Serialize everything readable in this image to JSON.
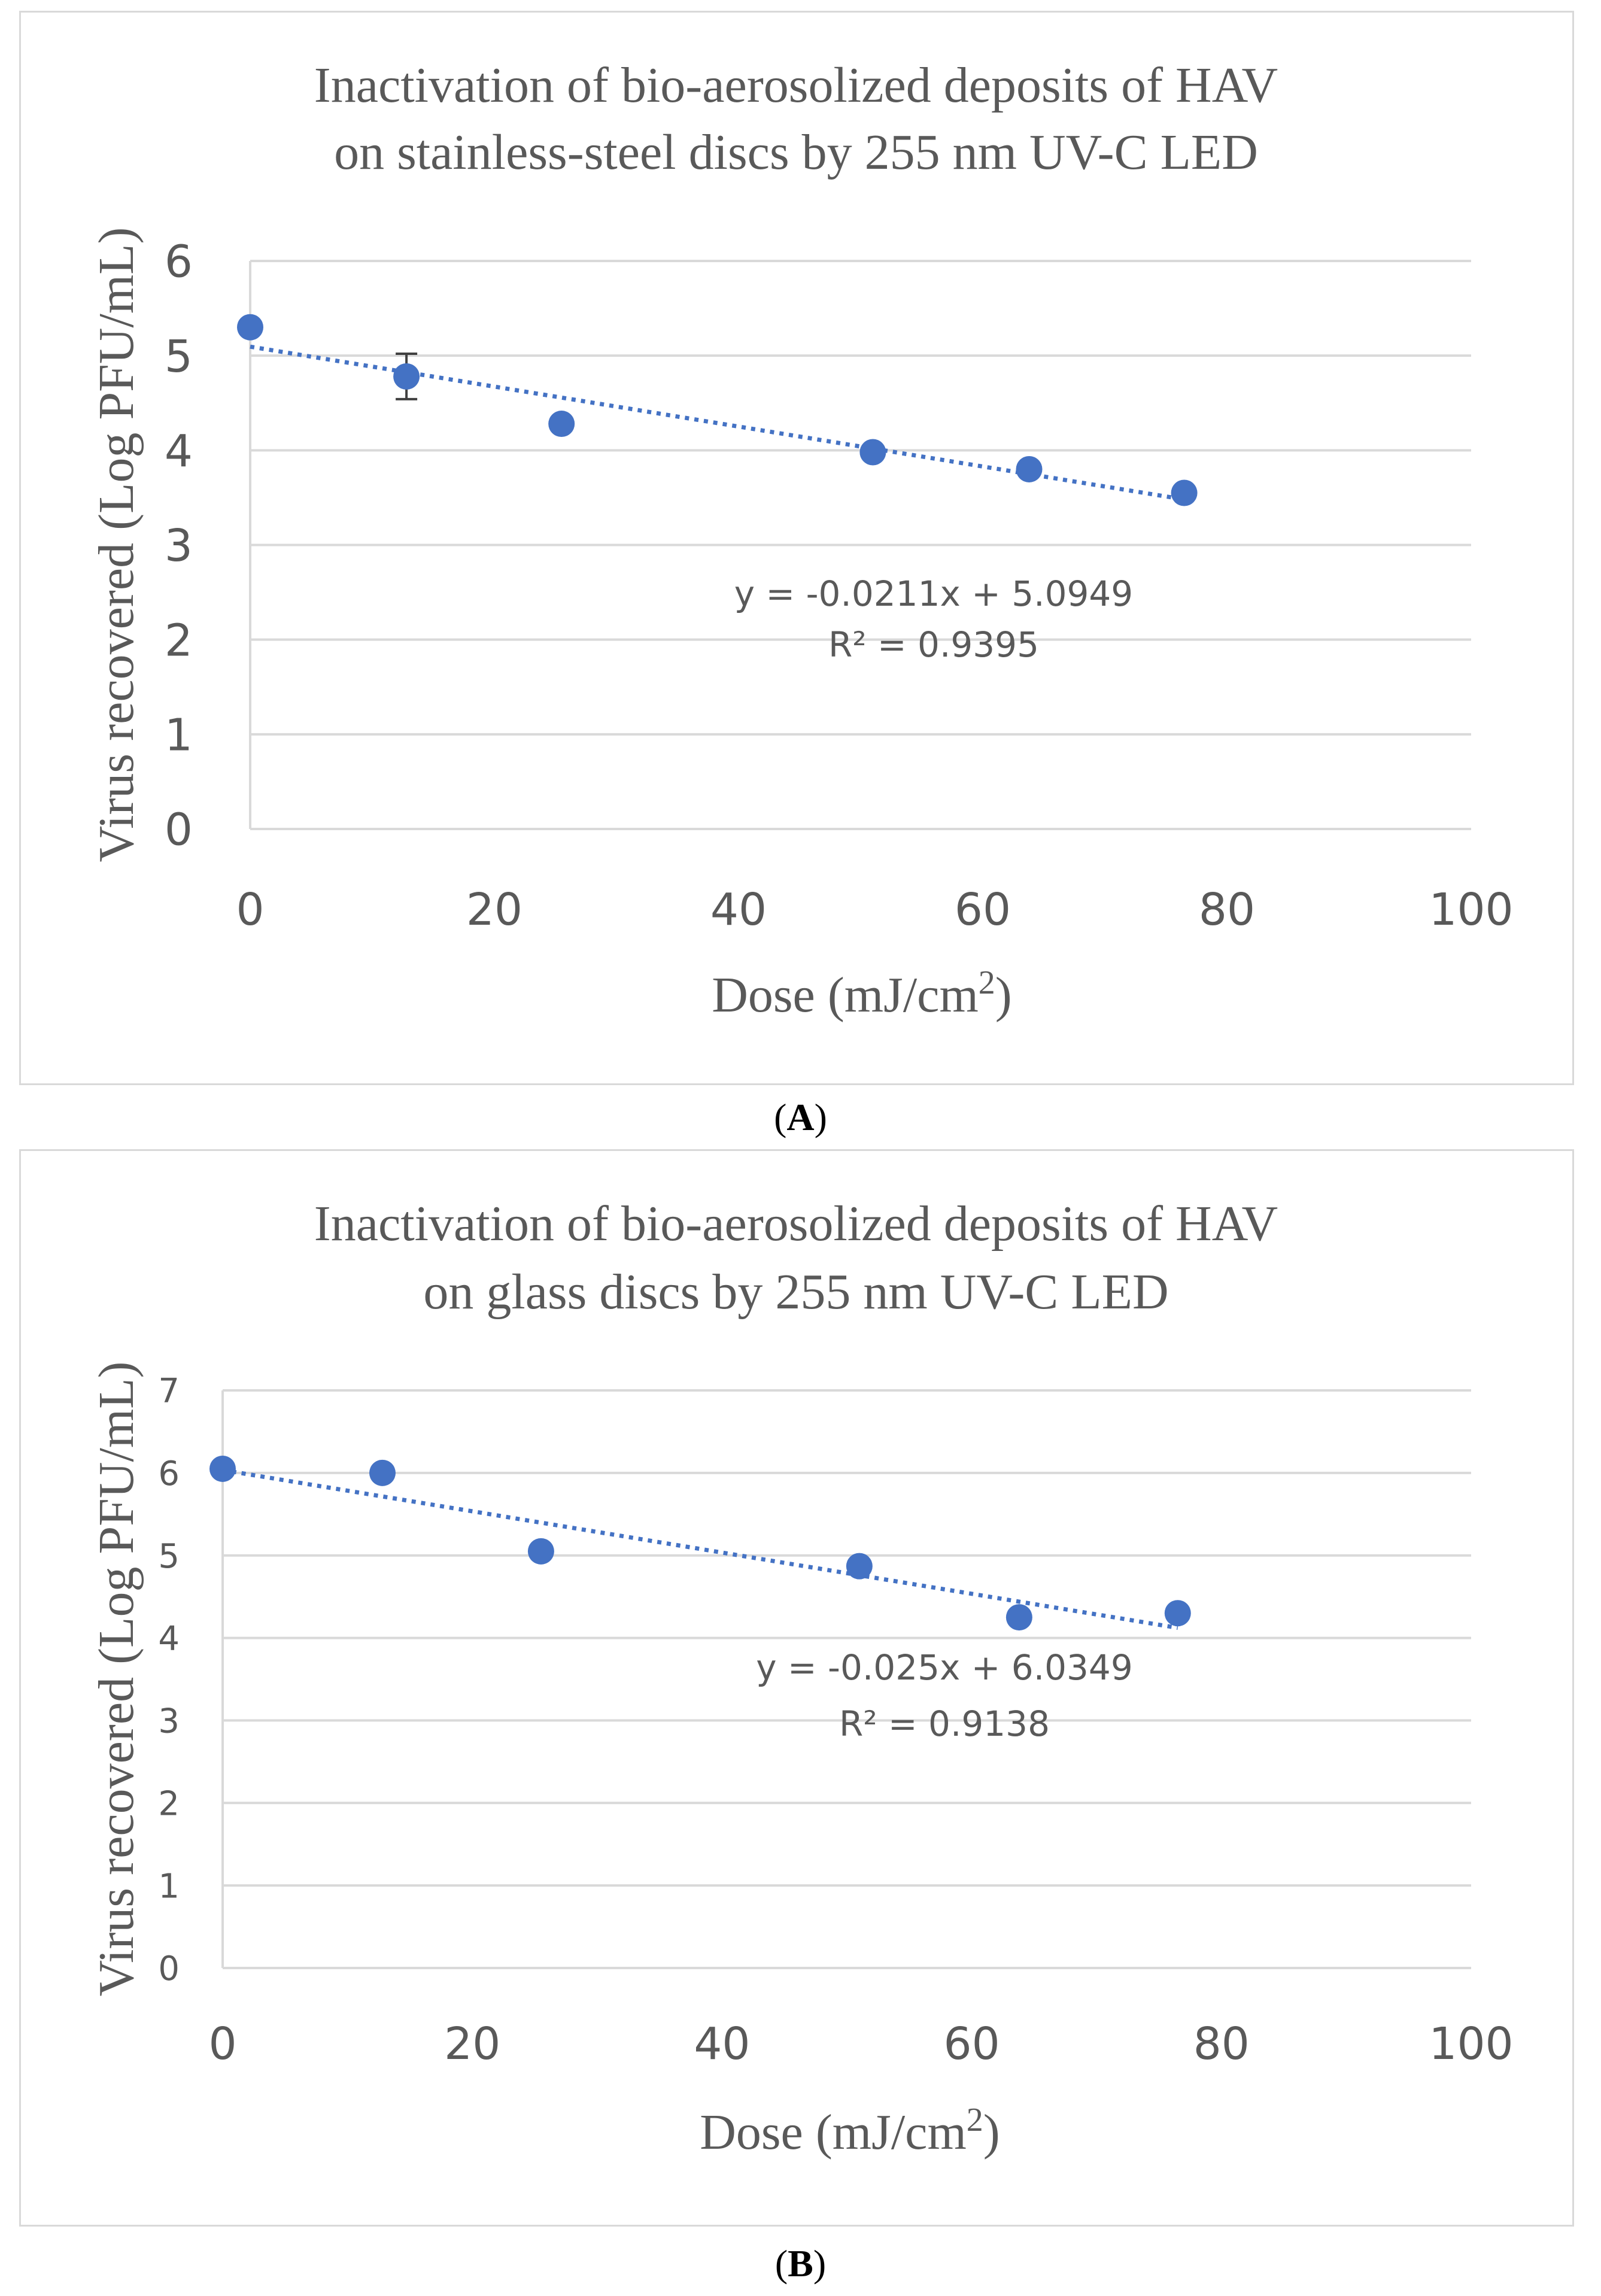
{
  "chart_data": [
    {
      "type": "scatter",
      "panel_label": "A",
      "title_lines": [
        "Inactivation of bio-aerosolized deposits of HAV",
        "on stainless-steel discs by 255 nm UV-C LED"
      ],
      "xlabel": "Dose (mJ/cm",
      "xlabel_sup": "2",
      "xlabel_close": ")",
      "ylabel": "Virus recovered (Log PFU/mL)",
      "xlim": [
        0,
        100
      ],
      "ylim": [
        0,
        6
      ],
      "xticks": [
        "0",
        "20",
        "40",
        "60",
        "80",
        "100"
      ],
      "yticks": [
        "0",
        "1",
        "2",
        "3",
        "4",
        "5",
        "6"
      ],
      "grid": true,
      "color": "#4472C4",
      "series": [
        {
          "name": "Virus recovered",
          "x": [
            0,
            12.8,
            25.5,
            51,
            63.8,
            76.5
          ],
          "y": [
            5.3,
            4.78,
            4.28,
            3.98,
            3.8,
            3.55
          ],
          "error": [
            0,
            0.24,
            0,
            0,
            0,
            0
          ]
        }
      ],
      "trendline": {
        "slope": -0.0211,
        "intercept": 5.0949,
        "x_range": [
          0,
          76.5
        ],
        "equation": "y = -0.0211x + 5.0949",
        "r2": "R² = 0.9395"
      }
    },
    {
      "type": "scatter",
      "panel_label": "B",
      "title_lines": [
        "Inactivation of bio-aerosolized deposits of HAV",
        "on glass discs by 255 nm UV-C LED"
      ],
      "xlabel": "Dose (mJ/cm",
      "xlabel_sup": "2",
      "xlabel_close": ")",
      "ylabel": "Virus recovered (Log PFU/mL)",
      "xlim": [
        0,
        100
      ],
      "ylim": [
        0,
        7
      ],
      "xticks": [
        "0",
        "20",
        "40",
        "60",
        "80",
        "100"
      ],
      "yticks": [
        "0",
        "1",
        "2",
        "3",
        "4",
        "5",
        "6",
        "7"
      ],
      "grid": true,
      "color": "#4472C4",
      "series": [
        {
          "name": "Virus recovered",
          "x": [
            0,
            12.8,
            25.5,
            51,
            63.8,
            76.5
          ],
          "y": [
            6.05,
            6.0,
            5.05,
            4.87,
            4.25,
            4.3
          ],
          "error": [
            0,
            0,
            0,
            0,
            0,
            0
          ]
        }
      ],
      "trendline": {
        "slope": -0.025,
        "intercept": 6.0349,
        "x_range": [
          0,
          76.5
        ],
        "equation": "y = -0.025x + 6.0349",
        "r2": "R² = 0.9138"
      }
    }
  ]
}
